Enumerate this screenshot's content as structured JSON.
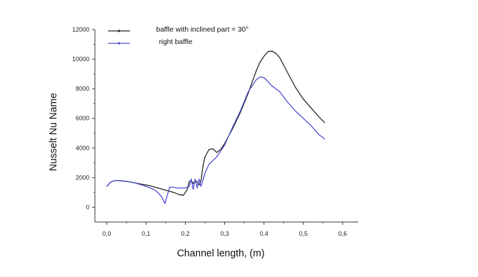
{
  "chart_data": {
    "type": "line",
    "xlabel": "Channel length, (m)",
    "ylabel": "Nusselt Nu Name",
    "xlim": [
      -0.03,
      0.64
    ],
    "ylim": [
      -1000,
      12000
    ],
    "xticks": [
      0.0,
      0.1,
      0.2,
      0.3,
      0.4,
      0.5,
      0.6
    ],
    "xtick_labels": [
      "0,0",
      "0,1",
      "0,2",
      "0,3",
      "0,4",
      "0,5",
      "0,6"
    ],
    "yticks": [
      0,
      2000,
      4000,
      6000,
      8000,
      10000,
      12000
    ],
    "ytick_labels": [
      "0",
      "2000",
      "4000",
      "6000",
      "8000",
      "10000",
      "12000"
    ],
    "grid": false,
    "legend_position": "top-left",
    "series": [
      {
        "name": "baffle with inclined part = 30°",
        "color": "#222222",
        "x": [
          0.0,
          0.01,
          0.02,
          0.03,
          0.05,
          0.07,
          0.09,
          0.11,
          0.13,
          0.15,
          0.17,
          0.185,
          0.195,
          0.205,
          0.21,
          0.215,
          0.22,
          0.225,
          0.23,
          0.235,
          0.24,
          0.245,
          0.25,
          0.26,
          0.27,
          0.28,
          0.29,
          0.3,
          0.32,
          0.34,
          0.36,
          0.38,
          0.39,
          0.4,
          0.41,
          0.42,
          0.43,
          0.44,
          0.46,
          0.48,
          0.5,
          0.52,
          0.54,
          0.555
        ],
        "y": [
          1400,
          1700,
          1800,
          1800,
          1750,
          1650,
          1550,
          1450,
          1300,
          1150,
          1000,
          850,
          800,
          1200,
          1750,
          1800,
          1600,
          1800,
          1700,
          1500,
          1800,
          2800,
          3400,
          3900,
          3950,
          3700,
          3900,
          4300,
          5300,
          6400,
          7700,
          9200,
          9800,
          10200,
          10500,
          10550,
          10400,
          10100,
          9100,
          8100,
          7300,
          6700,
          6100,
          5700
        ]
      },
      {
        "name": "right baffle",
        "color": "#4a4ad0",
        "x": [
          0.0,
          0.01,
          0.02,
          0.03,
          0.05,
          0.07,
          0.09,
          0.11,
          0.12,
          0.13,
          0.14,
          0.148,
          0.155,
          0.16,
          0.17,
          0.18,
          0.19,
          0.2,
          0.21,
          0.215,
          0.22,
          0.225,
          0.23,
          0.235,
          0.24,
          0.25,
          0.26,
          0.28,
          0.3,
          0.32,
          0.34,
          0.36,
          0.38,
          0.39,
          0.4,
          0.41,
          0.42,
          0.44,
          0.46,
          0.48,
          0.5,
          0.52,
          0.54,
          0.555
        ],
        "y": [
          1400,
          1700,
          1800,
          1800,
          1750,
          1650,
          1500,
          1300,
          1200,
          1000,
          700,
          250,
          900,
          1350,
          1350,
          1300,
          1300,
          1300,
          1400,
          1900,
          1200,
          1900,
          1300,
          1900,
          1400,
          2300,
          2900,
          3400,
          4200,
          5400,
          6500,
          7800,
          8600,
          8800,
          8750,
          8500,
          8200,
          7800,
          7100,
          6500,
          6000,
          5500,
          4900,
          4600
        ]
      }
    ]
  }
}
